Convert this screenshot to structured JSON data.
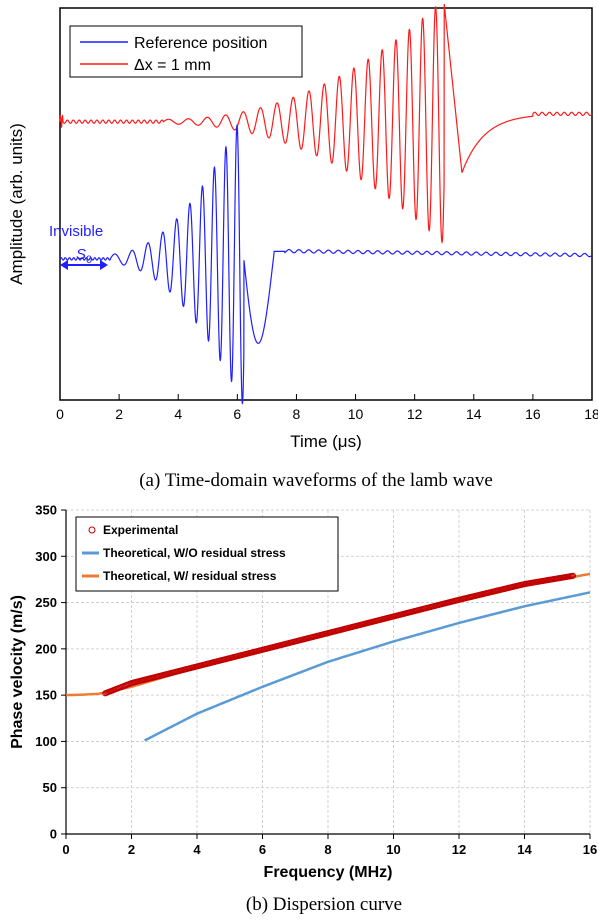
{
  "charts": [
    {
      "type": "line",
      "caption": "(a) Time-domain waveforms of the lamb wave",
      "xlabel": "Time (μs)",
      "ylabel": "Amplitude (arb. units)",
      "xlim": [
        0,
        18
      ],
      "xticks": [
        "0",
        "2",
        "4",
        "6",
        "8",
        "10",
        "12",
        "14",
        "16",
        "18"
      ],
      "yticks_shown": false,
      "grid": false,
      "legend_position": "top-left",
      "legend": [
        {
          "label": "Reference position",
          "color": "#1f1fff"
        },
        {
          "label": "Δx = 1 mm",
          "color": "#ff1a1a"
        }
      ],
      "annotation": {
        "text": "Invisible",
        "mode_letter": "S",
        "mode_sub": "0",
        "span_x": [
          0,
          1.7
        ],
        "color": "#1f1fff"
      },
      "series": [
        {
          "name": "Reference position",
          "color": "#1f1fff",
          "baseline_level": 0.36,
          "packet_start": 1.7,
          "peak_time": 6.0,
          "peak_amplitude": 0.34,
          "min_time": 6.5,
          "min_amplitude": -0.24
        },
        {
          "name": "Δx = 1 mm",
          "color": "#ff1a1a",
          "baseline_level": 0.71,
          "packet_start": 3.5,
          "peak_time": 12.8,
          "peak_amplitude": 0.3,
          "min_time": 12.4,
          "min_amplitude": -0.21
        }
      ]
    },
    {
      "type": "line",
      "caption": "(b) Dispersion curve",
      "xlabel": "Frequency (MHz)",
      "ylabel": "Phase velocity (m/s)",
      "xlim": [
        0,
        16
      ],
      "ylim": [
        0,
        350
      ],
      "xticks": [
        "0",
        "2",
        "4",
        "6",
        "8",
        "10",
        "12",
        "14",
        "16"
      ],
      "yticks": [
        "0",
        "50",
        "100",
        "150",
        "200",
        "250",
        "300",
        "350"
      ],
      "grid": true,
      "legend_position": "top-left",
      "legend": [
        {
          "label": "Experimental",
          "color": "#c00000",
          "marker": "circle"
        },
        {
          "label": "Theoretical, W/O residual stress",
          "color": "#5b9bd5",
          "marker": "line"
        },
        {
          "label": "Theoretical, W/ residual stress",
          "color": "#ed7d31",
          "marker": "line"
        }
      ]
    }
  ],
  "chart_data": [
    {
      "type": "line",
      "xlabel": "Time (μs)",
      "ylabel": "Amplitude (arb. units)",
      "xlim": [
        0,
        18
      ],
      "series": [
        {
          "name": "Reference position",
          "packet_start": 1.7,
          "peak": [
            6.0,
            0.34
          ],
          "trough": [
            6.5,
            -0.24
          ]
        },
        {
          "name": "Δx = 1 mm",
          "packet_start": 3.5,
          "peak": [
            12.8,
            0.3
          ],
          "trough": [
            12.4,
            -0.21
          ]
        }
      ]
    },
    {
      "type": "line",
      "xlabel": "Frequency (MHz)",
      "ylabel": "Phase velocity (m/s)",
      "xlim": [
        0,
        16
      ],
      "ylim": [
        0,
        350
      ],
      "series": [
        {
          "name": "Experimental",
          "x": [
            1.2,
            2,
            4,
            6,
            8,
            10,
            12,
            14,
            15.5
          ],
          "y": [
            152,
            163,
            181,
            199,
            217,
            235,
            253,
            270,
            279
          ]
        },
        {
          "name": "Theoretical, W/O residual stress",
          "x": [
            2.4,
            4,
            6,
            8,
            10,
            12,
            14,
            16
          ],
          "y": [
            101,
            130,
            159,
            186,
            208,
            228,
            246,
            261
          ]
        },
        {
          "name": "Theoretical, W/ residual stress",
          "x": [
            0,
            0.5,
            1,
            2,
            4,
            6,
            8,
            10,
            12,
            14,
            16
          ],
          "y": [
            150,
            150.5,
            151.5,
            159,
            180,
            198,
            216,
            234,
            251,
            268,
            281
          ]
        }
      ]
    }
  ]
}
